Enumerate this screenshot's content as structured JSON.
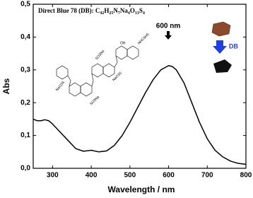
{
  "chart_data": {
    "type": "line",
    "title": "Direct Blue 78 (DB): ",
    "formula": [
      "C",
      "42",
      "H",
      "25",
      "N",
      "7",
      "Na",
      "4",
      "O",
      "13",
      "S",
      "4"
    ],
    "x_label": "Wavelength / nm",
    "y_label": "Abs",
    "annotations": [
      "600 nm",
      "DB"
    ],
    "structure_labels": [
      "NHC6H5",
      "OH",
      "SO3Na",
      "NaO3S",
      "SO3Na",
      "NaO3S"
    ],
    "x": [
      250,
      260,
      270,
      280,
      290,
      300,
      320,
      340,
      360,
      380,
      400,
      420,
      440,
      460,
      480,
      500,
      520,
      540,
      560,
      580,
      600,
      610,
      620,
      640,
      660,
      680,
      700,
      720,
      740,
      760,
      780,
      800
    ],
    "series": [
      {
        "name": "DB",
        "color": "#000000",
        "values": [
          0.15,
          0.145,
          0.145,
          0.148,
          0.145,
          0.135,
          0.11,
          0.085,
          0.06,
          0.052,
          0.055,
          0.05,
          0.053,
          0.07,
          0.1,
          0.14,
          0.185,
          0.23,
          0.27,
          0.3,
          0.313,
          0.31,
          0.3,
          0.26,
          0.2,
          0.14,
          0.09,
          0.055,
          0.035,
          0.022,
          0.015,
          0.012
        ]
      }
    ],
    "xlim": [
      250,
      800
    ],
    "ylim": [
      0,
      0.5
    ],
    "xticks": [
      300,
      400,
      500,
      600,
      700,
      800
    ],
    "yticks": [
      {
        "value": 0,
        "label": "0,0"
      },
      {
        "value": 0.1,
        "label": "0,1"
      },
      {
        "value": 0.2,
        "label": "0,2"
      },
      {
        "value": 0.3,
        "label": "0,3"
      },
      {
        "value": 0.4,
        "label": "0,4"
      },
      {
        "value": 0.5,
        "label": "0,5"
      }
    ]
  }
}
